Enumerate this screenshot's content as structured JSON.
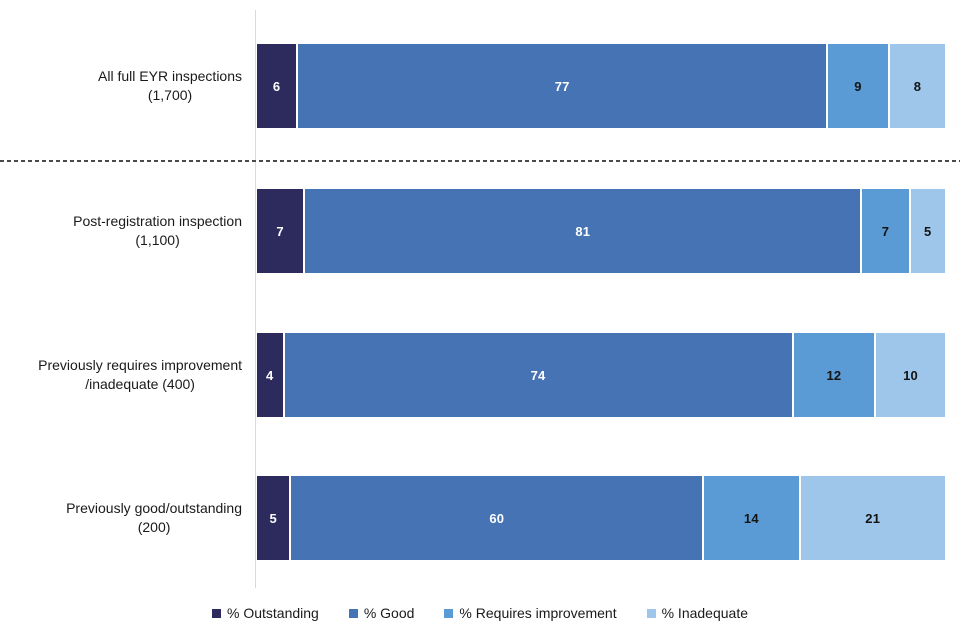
{
  "chart_data": {
    "type": "bar",
    "variant": "stacked-horizontal-100",
    "title": "",
    "xlabel": "",
    "ylabel": "",
    "xlim": [
      0,
      100
    ],
    "grid": false,
    "legend_position": "bottom",
    "separator_after_category_index": 0,
    "categories": [
      {
        "lines": [
          "All full EYR inspections",
          "(1,700)"
        ]
      },
      {
        "lines": [
          "Post-registration inspection",
          "(1,100)"
        ]
      },
      {
        "lines": [
          "Previously requires improvement",
          "/inadequate (400)"
        ]
      },
      {
        "lines": [
          "Previously good/outstanding",
          "(200)"
        ]
      }
    ],
    "series": [
      {
        "name": "% Outstanding",
        "color": "#2d2b5e",
        "label_color": "#ffffff",
        "values": [
          6,
          7,
          4,
          5
        ]
      },
      {
        "name": "% Good",
        "color": "#4573b4",
        "label_color": "#ffffff",
        "values": [
          77,
          81,
          74,
          60
        ]
      },
      {
        "name": "% Requires improvement",
        "color": "#5b9bd5",
        "label_color": "#141414",
        "values": [
          9,
          7,
          12,
          14
        ]
      },
      {
        "name": "% Inadequate",
        "color": "#9dc6ea",
        "label_color": "#141414",
        "values": [
          8,
          5,
          10,
          21
        ]
      }
    ],
    "style": {
      "axis_line_color": "#d9d9d9",
      "separator_line_color": "#4a4a4a",
      "background": "#ffffff"
    }
  }
}
